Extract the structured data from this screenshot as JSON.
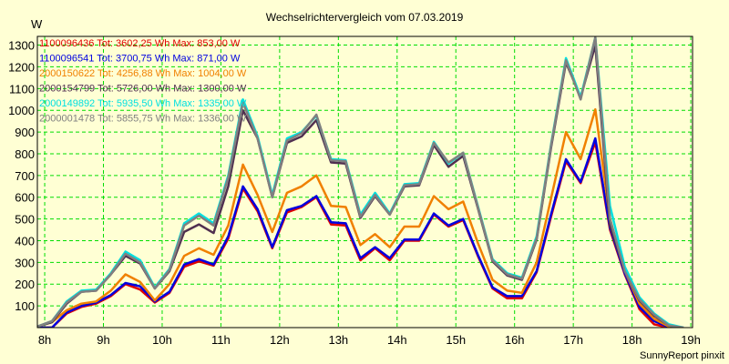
{
  "chart_data": {
    "type": "line",
    "title": "Wechselrichtervergleich vom 07.03.2019",
    "ylabel": "W",
    "xlabel": "",
    "footer": "SunnyReport pinxit",
    "xlim": [
      7.875,
      19.03
    ],
    "ylim": [
      0,
      1340
    ],
    "grid": true,
    "legend_position": "top-left",
    "x_ticks": [
      8,
      9,
      10,
      11,
      12,
      13,
      14,
      15,
      16,
      17,
      18,
      19
    ],
    "x_tick_labels": [
      "8h",
      "9h",
      "10h",
      "11h",
      "12h",
      "13h",
      "14h",
      "15h",
      "16h",
      "17h",
      "18h",
      "19h"
    ],
    "y_ticks": [
      100,
      200,
      300,
      400,
      500,
      600,
      700,
      800,
      900,
      1000,
      1100,
      1200,
      1300
    ],
    "y_tick_labels": [
      "100",
      "200",
      "300",
      "400",
      "500",
      "600",
      "700",
      "800",
      "900",
      "1000",
      "1100",
      "1200",
      "1300"
    ],
    "x": [
      7.875,
      8.125,
      8.375,
      8.625,
      8.875,
      9.125,
      9.375,
      9.625,
      9.875,
      10.125,
      10.375,
      10.625,
      10.875,
      11.125,
      11.375,
      11.625,
      11.875,
      12.125,
      12.375,
      12.625,
      12.875,
      13.125,
      13.375,
      13.625,
      13.875,
      14.125,
      14.375,
      14.625,
      14.875,
      15.125,
      15.375,
      15.625,
      15.875,
      16.125,
      16.375,
      16.625,
      16.875,
      17.125,
      17.375,
      17.625,
      17.875,
      18.125,
      18.375,
      18.625,
      18.875
    ],
    "series": [
      {
        "name": "1100096436",
        "legend": "1100096436 Tot: 3602,25 Wh Max: 853,00 W",
        "color": "#e00000",
        "values": [
          0,
          0,
          65,
          95,
          110,
          145,
          200,
          175,
          115,
          160,
          280,
          305,
          285,
          410,
          640,
          535,
          365,
          530,
          555,
          600,
          475,
          470,
          310,
          365,
          310,
          400,
          400,
          520,
          465,
          495,
          330,
          180,
          135,
          135,
          255,
          515,
          765,
          665,
          853,
          450,
          245,
          85,
          15,
          0,
          0
        ]
      },
      {
        "name": "1100096541",
        "legend": "1100096541 Tot: 3700,75 Wh Max: 871,00 W",
        "color": "#0000e0",
        "values": [
          0,
          0,
          70,
          100,
          115,
          150,
          205,
          190,
          120,
          165,
          290,
          315,
          290,
          420,
          650,
          545,
          370,
          540,
          560,
          605,
          485,
          480,
          320,
          370,
          320,
          405,
          405,
          525,
          470,
          500,
          335,
          185,
          145,
          145,
          260,
          525,
          775,
          670,
          871,
          460,
          250,
          95,
          30,
          2,
          0
        ]
      },
      {
        "name": "2000150622",
        "legend": "2000150622 Tot: 4256,88 Wh Max: 1004,00 W",
        "color": "#f08000",
        "values": [
          5,
          25,
          80,
          110,
          120,
          170,
          245,
          210,
          125,
          200,
          330,
          365,
          335,
          470,
          750,
          610,
          440,
          620,
          650,
          700,
          560,
          555,
          380,
          430,
          370,
          465,
          465,
          605,
          545,
          580,
          390,
          220,
          170,
          160,
          300,
          600,
          900,
          775,
          1004,
          500,
          260,
          110,
          40,
          5,
          0
        ]
      },
      {
        "name": "2000154799",
        "legend": "2000154799 Tot: 5726,00 Wh Max: 1300,00 W",
        "color": "#503050",
        "values": [
          5,
          25,
          110,
          165,
          170,
          245,
          330,
          295,
          180,
          260,
          440,
          475,
          435,
          650,
          1000,
          870,
          600,
          850,
          880,
          955,
          760,
          755,
          505,
          605,
          520,
          650,
          655,
          840,
          740,
          790,
          550,
          305,
          240,
          220,
          405,
          835,
          1220,
          1060,
          1300,
          470,
          260,
          125,
          55,
          10,
          0
        ]
      },
      {
        "name": "2000149892",
        "legend": "2000149892 Tot: 5935,50 Wh Max: 1335,00 W",
        "color": "#00e0e0",
        "values": [
          5,
          30,
          120,
          170,
          175,
          250,
          350,
          310,
          185,
          270,
          480,
          525,
          480,
          700,
          1050,
          880,
          610,
          870,
          900,
          975,
          775,
          770,
          520,
          620,
          525,
          660,
          665,
          855,
          755,
          805,
          560,
          315,
          250,
          230,
          420,
          850,
          1240,
          1060,
          1335,
          560,
          280,
          140,
          65,
          15,
          0
        ]
      },
      {
        "name": "2000001478",
        "legend": "2000001478 Tot: 5855,75 Wh Max: 1336,00 W",
        "color": "#808080",
        "values": [
          5,
          30,
          115,
          165,
          170,
          245,
          340,
          300,
          180,
          265,
          470,
          515,
          470,
          690,
          1035,
          870,
          600,
          860,
          895,
          980,
          770,
          765,
          510,
          610,
          520,
          655,
          660,
          850,
          760,
          805,
          555,
          310,
          245,
          225,
          410,
          845,
          1230,
          1050,
          1336,
          500,
          260,
          130,
          60,
          10,
          0
        ]
      }
    ]
  }
}
